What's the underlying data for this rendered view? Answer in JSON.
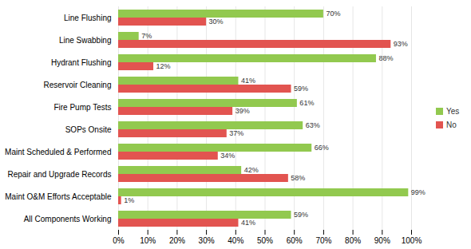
{
  "chart_data": {
    "type": "bar",
    "orientation": "horizontal",
    "categories": [
      "Line Flushing",
      "Line Swabbing",
      "Hydrant Flushing",
      "Reservoir Cleaning",
      "Fire Pump Tests",
      "SOPs Onsite",
      "Maint Scheduled & Performed",
      "Repair and Upgrade Records",
      "Maint O&M Efforts Acceptable",
      "All Components Working"
    ],
    "series": [
      {
        "name": "Yes",
        "color": "#92c94f",
        "values": [
          70,
          7,
          88,
          41,
          61,
          63,
          66,
          42,
          99,
          59
        ],
        "value_labels": [
          "70%",
          "7%",
          "88%",
          "41%",
          "61%",
          "63%",
          "66%",
          "42%",
          "99%",
          "59%"
        ]
      },
      {
        "name": "No",
        "color": "#e25450",
        "values": [
          30,
          93,
          12,
          59,
          39,
          37,
          34,
          58,
          1,
          41
        ],
        "value_labels": [
          "30%",
          "93%",
          "12%",
          "59%",
          "39%",
          "37%",
          "34%",
          "58%",
          "1%",
          "41%"
        ]
      }
    ],
    "xlim": [
      0,
      100
    ],
    "xticks": [
      {
        "value": 0,
        "label": "0%"
      },
      {
        "value": 10,
        "label": "10%"
      },
      {
        "value": 20,
        "label": "20%"
      },
      {
        "value": 30,
        "label": "30%"
      },
      {
        "value": 40,
        "label": "40%"
      },
      {
        "value": 50,
        "label": "50%"
      },
      {
        "value": 60,
        "label": "60%"
      },
      {
        "value": 70,
        "label": "70%"
      },
      {
        "value": 80,
        "label": "80%"
      },
      {
        "value": 90,
        "label": "90%"
      },
      {
        "value": 100,
        "label": "100%"
      }
    ],
    "grid": true,
    "data_labels": true,
    "legend": "right"
  }
}
